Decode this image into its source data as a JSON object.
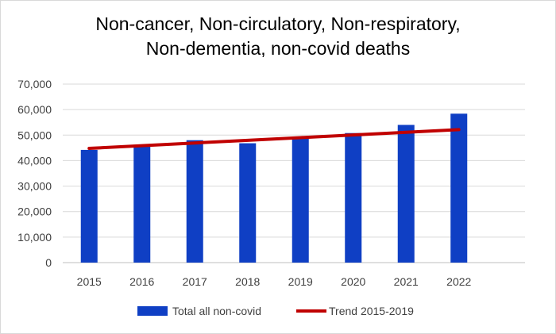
{
  "chart_data": {
    "type": "bar",
    "title_lines": [
      "Non-cancer, Non-circulatory, Non-respiratory,",
      "Non-dementia, non-covid deaths"
    ],
    "categories": [
      "2015",
      "2016",
      "2017",
      "2018",
      "2019",
      "2020",
      "2021",
      "2022"
    ],
    "series": [
      {
        "name": "Total all non-covid",
        "type": "bar",
        "color": "#0f3fc4",
        "values": [
          44200,
          46000,
          48000,
          46800,
          49200,
          50800,
          54000,
          58400
        ]
      },
      {
        "name": "Trend 2015-2019",
        "type": "line",
        "color": "#c00000",
        "values": [
          44800,
          45850,
          46900,
          47950,
          49000,
          50050,
          51100,
          52150
        ]
      }
    ],
    "ylim": [
      0,
      70000
    ],
    "yticks": [
      "0",
      "10,000",
      "20,000",
      "30,000",
      "40,000",
      "50,000",
      "60,000",
      "70,000"
    ],
    "grid": true,
    "legend_position": "bottom"
  }
}
